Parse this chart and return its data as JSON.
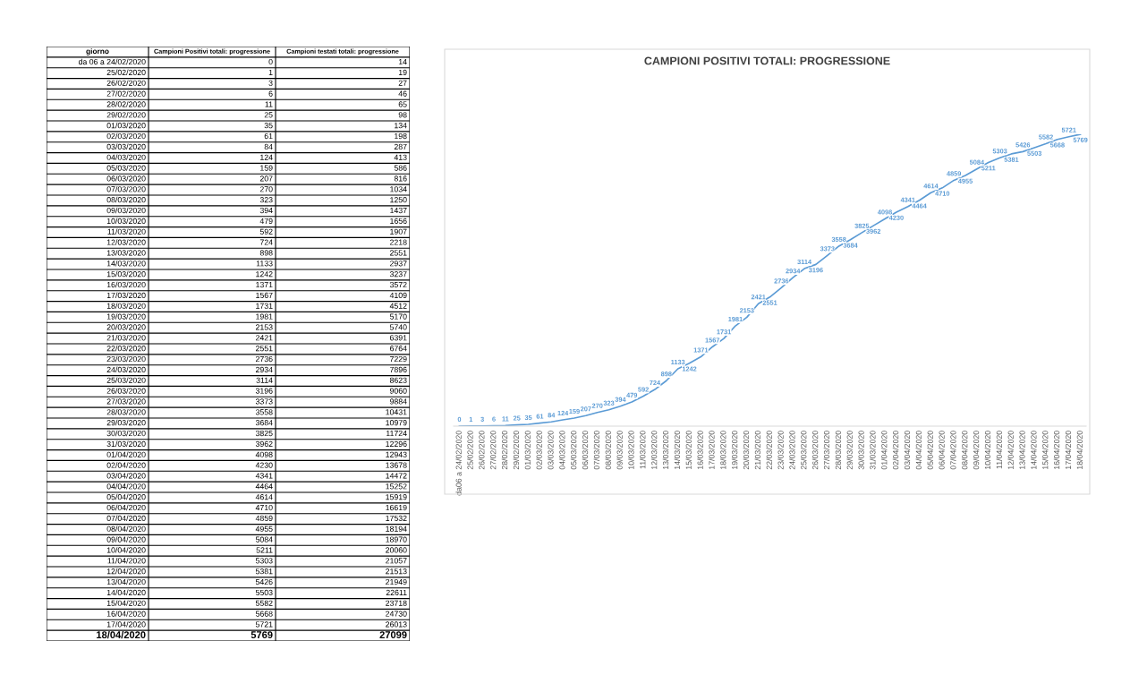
{
  "chart_data": [
    {
      "type": "other",
      "xlabel": "giorno",
      "data_labels": true,
      "categories": [
        "da 06 a 24/02/2020",
        "25/02/2020",
        "26/02/2020",
        "27/02/2020",
        "28/02/2020",
        "29/02/2020",
        "01/03/2020",
        "02/03/2020",
        "03/03/2020",
        "04/03/2020",
        "05/03/2020",
        "06/03/2020",
        "07/03/2020",
        "08/03/2020",
        "09/03/2020",
        "10/03/2020",
        "11/03/2020",
        "12/03/2020",
        "13/03/2020",
        "14/03/2020",
        "15/03/2020",
        "16/03/2020",
        "17/03/2020",
        "18/03/2020",
        "19/03/2020",
        "20/03/2020",
        "21/03/2020",
        "22/03/2020",
        "23/03/2020",
        "24/03/2020",
        "25/03/2020",
        "26/03/2020",
        "27/03/2020",
        "28/03/2020",
        "29/03/2020",
        "30/03/2020",
        "31/03/2020",
        "01/04/2020",
        "02/04/2020",
        "03/04/2020",
        "04/04/2020",
        "05/04/2020",
        "06/04/2020",
        "07/04/2020",
        "08/04/2020",
        "09/04/2020",
        "10/04/2020",
        "11/04/2020",
        "12/04/2020",
        "13/04/2020",
        "14/04/2020",
        "15/04/2020",
        "16/04/2020",
        "17/04/2020",
        "18/04/2020"
      ],
      "series": [
        {
          "name": "Campioni Positivi totali: progressione",
          "values": [
            0,
            1,
            3,
            6,
            11,
            25,
            35,
            61,
            84,
            124,
            159,
            207,
            270,
            323,
            394,
            479,
            592,
            724,
            898,
            1133,
            1242,
            1371,
            1567,
            1731,
            1981,
            2153,
            2421,
            2551,
            2736,
            2934,
            3114,
            3196,
            3373,
            3558,
            3684,
            3825,
            3962,
            4098,
            4230,
            4341,
            4464,
            4614,
            4710,
            4859,
            4955,
            5084,
            5211,
            5303,
            5381,
            5426,
            5503,
            5582,
            5668,
            5721,
            5769
          ]
        },
        {
          "name": "Campioni testati totali: progressione",
          "values": [
            14,
            19,
            27,
            46,
            65,
            98,
            134,
            198,
            287,
            413,
            586,
            816,
            1034,
            1250,
            1437,
            1656,
            1907,
            2218,
            2551,
            2937,
            3237,
            3572,
            4109,
            4512,
            5170,
            5740,
            6391,
            6764,
            7229,
            7896,
            8623,
            9060,
            9884,
            10431,
            10979,
            11724,
            12296,
            12943,
            13678,
            14472,
            15252,
            15919,
            16619,
            17532,
            18194,
            18970,
            20060,
            21057,
            21513,
            21949,
            22611,
            23718,
            24730,
            26013,
            27099
          ]
        }
      ]
    },
    {
      "type": "line",
      "title": "CAMPIONI POSITIVI TOTALI: PROGRESSIONE",
      "data_labels": true,
      "grid": false,
      "marker": "none",
      "line_style": "solid",
      "categories": [
        "da06 a 24/02/2020",
        "25/02/2020",
        "26/02/2020",
        "27/02/2020",
        "28/02/2020",
        "29/02/2020",
        "01/03/2020",
        "02/03/2020",
        "03/03/2020",
        "04/03/2020",
        "05/03/2020",
        "06/03/2020",
        "07/03/2020",
        "08/03/2020",
        "09/03/2020",
        "10/03/2020",
        "11/03/2020",
        "12/03/2020",
        "13/03/2020",
        "14/03/2020",
        "15/03/2020",
        "16/03/2020",
        "17/03/2020",
        "18/03/2020",
        "19/03/2020",
        "20/03/2020",
        "21/03/2020",
        "22/03/2020",
        "23/03/2020",
        "24/03/2020",
        "25/03/2020",
        "26/03/2020",
        "27/03/2020",
        "28/03/2020",
        "29/03/2020",
        "30/03/2020",
        "31/03/2020",
        "01/04/2020",
        "02/04/2020",
        "03/04/2020",
        "04/04/2020",
        "05/04/2020",
        "06/04/2020",
        "07/04/2020",
        "08/04/2020",
        "09/04/2020",
        "10/04/2020",
        "11/04/2020",
        "12/04/2020",
        "13/04/2020",
        "14/04/2020",
        "15/04/2020",
        "16/04/2020",
        "17/04/2020",
        "18/04/2020"
      ],
      "series": [
        {
          "color": "#5b9bd5",
          "values": [
            0,
            1,
            3,
            6,
            11,
            25,
            35,
            61,
            84,
            124,
            159,
            207,
            270,
            323,
            394,
            479,
            592,
            724,
            898,
            1133,
            1242,
            1371,
            1567,
            1731,
            1981,
            2153,
            2421,
            2551,
            2736,
            2934,
            3114,
            3196,
            3373,
            3558,
            3684,
            3825,
            3962,
            4098,
            4230,
            4341,
            4464,
            4614,
            4710,
            4859,
            4955,
            5084,
            5211,
            5303,
            5381,
            5426,
            5503,
            5582,
            5668,
            5721,
            5769
          ]
        }
      ]
    }
  ]
}
